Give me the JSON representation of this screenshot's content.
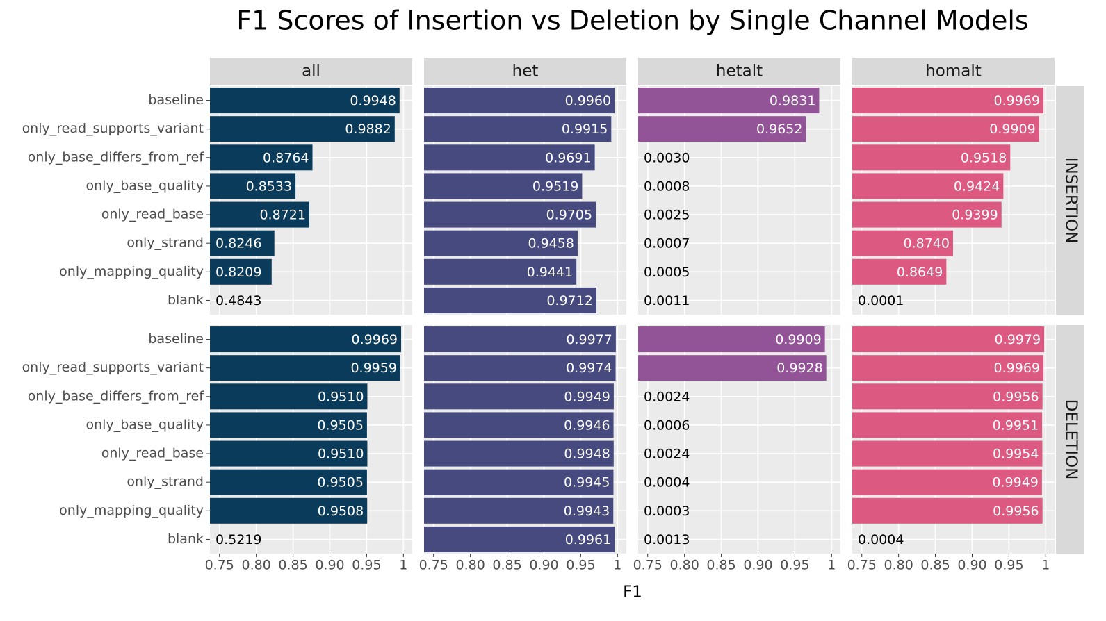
{
  "chart_data": {
    "type": "bar",
    "title": "F1 Scores of Insertion vs Deletion by Single Channel Models",
    "x_label": "F1",
    "categories": [
      "baseline",
      "only_read_supports_variant",
      "only_base_differs_from_ref",
      "only_base_quality",
      "only_read_base",
      "only_strand",
      "only_mapping_quality",
      "blank"
    ],
    "rows": [
      "INSERTION",
      "DELETION"
    ],
    "xlim": [
      0.737,
      1.012
    ],
    "xticks": [
      0.75,
      {
        "value": 0.8,
        "label": "0.80"
      },
      0.85,
      {
        "value": 0.9,
        "label": "0.90"
      },
      0.95,
      1
    ],
    "grid": true,
    "columns": [
      {
        "name": "all",
        "color": "#0b3b5a",
        "panels": [
          {
            "values": [
              0.9948,
              0.9882,
              0.8764,
              0.8533,
              0.8721,
              0.8246,
              0.8209,
              0.4843
            ],
            "value_labels": [
              "0.9948",
              "0.9882",
              "0.8764",
              "0.8533",
              "0.8721",
              "0.8246",
              "0.8209",
              "0.4843"
            ]
          },
          {
            "values": [
              0.9969,
              0.9959,
              0.951,
              0.9505,
              0.951,
              0.9505,
              0.9508,
              0.5219
            ],
            "value_labels": [
              "0.9969",
              "0.9959",
              "0.9510",
              "0.9505",
              "0.9510",
              "0.9505",
              "0.9508",
              "0.5219"
            ]
          }
        ]
      },
      {
        "name": "het",
        "color": "#464a7f",
        "panels": [
          {
            "values": [
              0.996,
              0.9915,
              0.9691,
              0.9519,
              0.9705,
              0.9458,
              0.9441,
              0.9712
            ],
            "value_labels": [
              "0.9960",
              "0.9915",
              "0.9691",
              "0.9519",
              "0.9705",
              "0.9458",
              "0.9441",
              "0.9712"
            ]
          },
          {
            "values": [
              0.9977,
              0.9974,
              0.9949,
              0.9946,
              0.9948,
              0.9945,
              0.9943,
              0.9961
            ],
            "value_labels": [
              "0.9977",
              "0.9974",
              "0.9949",
              "0.9946",
              "0.9948",
              "0.9945",
              "0.9943",
              "0.9961"
            ]
          }
        ]
      },
      {
        "name": "hetalt",
        "color": "#935497",
        "panels": [
          {
            "values": [
              0.9831,
              0.9652,
              0.003,
              0.0008,
              0.0025,
              0.0007,
              0.0005,
              0.0011
            ],
            "value_labels": [
              "0.9831",
              "0.9652",
              "0.0030",
              "0.0008",
              "0.0025",
              "0.0007",
              "0.0005",
              "0.0011"
            ]
          },
          {
            "values": [
              0.9909,
              0.9928,
              0.0024,
              0.0006,
              0.0024,
              0.0004,
              0.0003,
              0.0013
            ],
            "value_labels": [
              "0.9909",
              "0.9928",
              "0.0024",
              "0.0006",
              "0.0024",
              "0.0004",
              "0.0003",
              "0.0013"
            ]
          }
        ]
      },
      {
        "name": "homalt",
        "color": "#dc5a81",
        "panels": [
          {
            "values": [
              0.9969,
              0.9909,
              0.9518,
              0.9424,
              0.9399,
              0.874,
              0.8649,
              0.0001
            ],
            "value_labels": [
              "0.9969",
              "0.9909",
              "0.9518",
              "0.9424",
              "0.9399",
              "0.8740",
              "0.8649",
              "0.0001"
            ]
          },
          {
            "values": [
              0.9979,
              0.9969,
              0.9956,
              0.9951,
              0.9954,
              0.9949,
              0.9956,
              0.0004
            ],
            "value_labels": [
              "0.9979",
              "0.9969",
              "0.9956",
              "0.9951",
              "0.9954",
              "0.9949",
              "0.9956",
              "0.0004"
            ]
          }
        ]
      }
    ]
  }
}
